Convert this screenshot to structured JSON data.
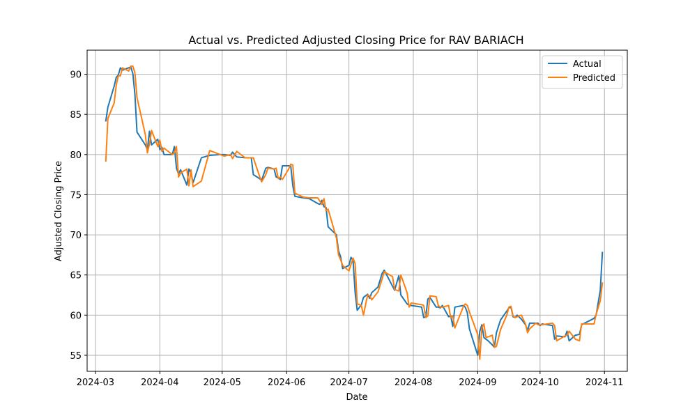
{
  "chart_data": {
    "type": "line",
    "title": "Actual vs. Predicted Adjusted Closing Price for RAV BARIACH",
    "xlabel": "Date",
    "ylabel": "Adjusted Closing Price",
    "x_ticks": [
      "2024-03",
      "2024-04",
      "2024-05",
      "2024-06",
      "2024-07",
      "2024-08",
      "2024-09",
      "2024-10",
      "2024-11"
    ],
    "y_ticks": [
      55,
      60,
      65,
      70,
      75,
      80,
      85,
      90
    ],
    "xlim": [
      "2024-02-26",
      "2024-11-12"
    ],
    "ylim": [
      53,
      93
    ],
    "grid": true,
    "legend_position": "top-right",
    "colors": {
      "actual": "#1f77b4",
      "predicted": "#ff7f0e"
    },
    "series": [
      {
        "name": "Actual",
        "points": [
          [
            "2024-03-06",
            84.2
          ],
          [
            "2024-03-07",
            85.9
          ],
          [
            "2024-03-10",
            88.5
          ],
          [
            "2024-03-11",
            89.6
          ],
          [
            "2024-03-12",
            89.9
          ],
          [
            "2024-03-13",
            90.8
          ],
          [
            "2024-03-14",
            90.5
          ],
          [
            "2024-03-17",
            90.8
          ],
          [
            "2024-03-18",
            90.9
          ],
          [
            "2024-03-19",
            90.1
          ],
          [
            "2024-03-20",
            87.5
          ],
          [
            "2024-03-21",
            82.8
          ],
          [
            "2024-03-25",
            81.2
          ],
          [
            "2024-03-26",
            80.6
          ],
          [
            "2024-03-27",
            82.9
          ],
          [
            "2024-03-28",
            81.2
          ],
          [
            "2024-03-31",
            81.9
          ],
          [
            "2024-04-01",
            80.6
          ],
          [
            "2024-04-02",
            80.9
          ],
          [
            "2024-04-03",
            80.0
          ],
          [
            "2024-04-07",
            80.0
          ],
          [
            "2024-04-08",
            81.0
          ],
          [
            "2024-04-09",
            78.3
          ],
          [
            "2024-04-10",
            77.6
          ],
          [
            "2024-04-11",
            78.1
          ],
          [
            "2024-04-14",
            76.2
          ],
          [
            "2024-04-15",
            78.2
          ],
          [
            "2024-04-16",
            77.7
          ],
          [
            "2024-04-17",
            76.5
          ],
          [
            "2024-04-21",
            79.6
          ],
          [
            "2024-04-25",
            79.9
          ],
          [
            "2024-04-30",
            80.0
          ],
          [
            "2024-05-02",
            80.0
          ],
          [
            "2024-05-05",
            79.9
          ],
          [
            "2024-05-06",
            80.3
          ],
          [
            "2024-05-08",
            79.7
          ],
          [
            "2024-05-12",
            79.6
          ],
          [
            "2024-05-15",
            79.6
          ],
          [
            "2024-05-16",
            77.5
          ],
          [
            "2024-05-19",
            77.0
          ],
          [
            "2024-05-20",
            76.8
          ],
          [
            "2024-05-22",
            78.3
          ],
          [
            "2024-05-23",
            78.4
          ],
          [
            "2024-05-26",
            78.2
          ],
          [
            "2024-05-27",
            77.2
          ],
          [
            "2024-05-28",
            77.1
          ],
          [
            "2024-05-29",
            76.9
          ],
          [
            "2024-05-30",
            78.6
          ],
          [
            "2024-06-02",
            78.6
          ],
          [
            "2024-06-03",
            78.6
          ],
          [
            "2024-06-04",
            76.1
          ],
          [
            "2024-06-05",
            74.8
          ],
          [
            "2024-06-09",
            74.6
          ],
          [
            "2024-06-12",
            74.5
          ],
          [
            "2024-06-16",
            73.9
          ],
          [
            "2024-06-17",
            73.8
          ],
          [
            "2024-06-18",
            74.3
          ],
          [
            "2024-06-19",
            73.5
          ],
          [
            "2024-06-20",
            73.4
          ],
          [
            "2024-06-21",
            71.0
          ],
          [
            "2024-06-25",
            70.0
          ],
          [
            "2024-06-26",
            68.0
          ],
          [
            "2024-06-27",
            67.3
          ],
          [
            "2024-06-28",
            65.8
          ],
          [
            "2024-07-01",
            66.2
          ],
          [
            "2024-07-02",
            67.2
          ],
          [
            "2024-07-03",
            66.8
          ],
          [
            "2024-07-04",
            62.8
          ],
          [
            "2024-07-05",
            60.6
          ],
          [
            "2024-07-07",
            61.3
          ],
          [
            "2024-07-08",
            62.2
          ],
          [
            "2024-07-10",
            62.6
          ],
          [
            "2024-07-11",
            62.1
          ],
          [
            "2024-07-12",
            62.8
          ],
          [
            "2024-07-15",
            63.5
          ],
          [
            "2024-07-17",
            65.2
          ],
          [
            "2024-07-18",
            65.6
          ],
          [
            "2024-07-22",
            63.6
          ],
          [
            "2024-07-23",
            63.1
          ],
          [
            "2024-07-25",
            64.9
          ],
          [
            "2024-07-26",
            62.5
          ],
          [
            "2024-07-29",
            61.4
          ],
          [
            "2024-07-30",
            61.2
          ],
          [
            "2024-07-31",
            61.2
          ],
          [
            "2024-08-05",
            61.0
          ],
          [
            "2024-08-06",
            59.7
          ],
          [
            "2024-08-07",
            59.8
          ],
          [
            "2024-08-08",
            62.0
          ],
          [
            "2024-08-09",
            62.2
          ],
          [
            "2024-08-12",
            61.0
          ],
          [
            "2024-08-13",
            61.0
          ],
          [
            "2024-08-14",
            60.9
          ],
          [
            "2024-08-15",
            61.2
          ],
          [
            "2024-08-18",
            59.8
          ],
          [
            "2024-08-19",
            59.9
          ],
          [
            "2024-08-20",
            58.6
          ],
          [
            "2024-08-21",
            61.0
          ],
          [
            "2024-08-25",
            61.2
          ],
          [
            "2024-08-26",
            61.0
          ],
          [
            "2024-08-27",
            60.3
          ],
          [
            "2024-08-28",
            58.3
          ],
          [
            "2024-09-01",
            55.0
          ],
          [
            "2024-09-02",
            58.0
          ],
          [
            "2024-09-03",
            58.8
          ],
          [
            "2024-09-04",
            57.2
          ],
          [
            "2024-09-05",
            57.0
          ],
          [
            "2024-09-06",
            56.8
          ],
          [
            "2024-09-08",
            56.3
          ],
          [
            "2024-09-09",
            56.0
          ],
          [
            "2024-09-10",
            57.8
          ],
          [
            "2024-09-12",
            59.4
          ],
          [
            "2024-09-15",
            60.5
          ],
          [
            "2024-09-16",
            60.9
          ],
          [
            "2024-09-17",
            61.0
          ],
          [
            "2024-09-18",
            59.8
          ],
          [
            "2024-09-19",
            59.7
          ],
          [
            "2024-09-20",
            60.0
          ],
          [
            "2024-09-22",
            59.5
          ],
          [
            "2024-09-24",
            58.8
          ],
          [
            "2024-09-25",
            58.1
          ],
          [
            "2024-09-26",
            59.0
          ],
          [
            "2024-09-29",
            59.0
          ],
          [
            "2024-09-30",
            59.0
          ],
          [
            "2024-10-01",
            58.7
          ],
          [
            "2024-10-02",
            58.9
          ],
          [
            "2024-10-07",
            58.7
          ],
          [
            "2024-10-08",
            57.0
          ],
          [
            "2024-10-09",
            57.4
          ],
          [
            "2024-10-13",
            57.3
          ],
          [
            "2024-10-14",
            58.0
          ],
          [
            "2024-10-15",
            56.8
          ],
          [
            "2024-10-18",
            57.5
          ],
          [
            "2024-10-20",
            57.6
          ],
          [
            "2024-10-21",
            58.8
          ],
          [
            "2024-10-27",
            59.6
          ],
          [
            "2024-10-28",
            60.0
          ],
          [
            "2024-10-30",
            63.1
          ],
          [
            "2024-10-31",
            67.8
          ]
        ]
      },
      {
        "name": "Predicted",
        "points": [
          [
            "2024-03-06",
            79.2
          ],
          [
            "2024-03-07",
            84.5
          ],
          [
            "2024-03-10",
            86.4
          ],
          [
            "2024-03-11",
            88.6
          ],
          [
            "2024-03-12",
            89.8
          ],
          [
            "2024-03-13",
            89.8
          ],
          [
            "2024-03-14",
            90.8
          ],
          [
            "2024-03-17",
            90.4
          ],
          [
            "2024-03-18",
            91.0
          ],
          [
            "2024-03-19",
            91.0
          ],
          [
            "2024-03-20",
            90.2
          ],
          [
            "2024-03-21",
            87.1
          ],
          [
            "2024-03-25",
            82.5
          ],
          [
            "2024-03-26",
            80.2
          ],
          [
            "2024-03-27",
            81.3
          ],
          [
            "2024-03-28",
            83.0
          ],
          [
            "2024-03-31",
            81.0
          ],
          [
            "2024-04-01",
            81.8
          ],
          [
            "2024-04-02",
            80.4
          ],
          [
            "2024-04-03",
            80.8
          ],
          [
            "2024-04-07",
            80.0
          ],
          [
            "2024-04-08",
            80.2
          ],
          [
            "2024-04-09",
            81.0
          ],
          [
            "2024-04-10",
            77.2
          ],
          [
            "2024-04-11",
            77.7
          ],
          [
            "2024-04-14",
            78.2
          ],
          [
            "2024-04-15",
            76.1
          ],
          [
            "2024-04-16",
            78.1
          ],
          [
            "2024-04-17",
            76.0
          ],
          [
            "2024-04-21",
            76.7
          ],
          [
            "2024-04-25",
            80.5
          ],
          [
            "2024-04-30",
            80.0
          ],
          [
            "2024-05-02",
            79.8
          ],
          [
            "2024-05-05",
            80.0
          ],
          [
            "2024-05-06",
            79.5
          ],
          [
            "2024-05-08",
            80.4
          ],
          [
            "2024-05-12",
            79.6
          ],
          [
            "2024-05-15",
            79.6
          ],
          [
            "2024-05-16",
            79.6
          ],
          [
            "2024-05-19",
            77.3
          ],
          [
            "2024-05-20",
            76.6
          ],
          [
            "2024-05-22",
            77.5
          ],
          [
            "2024-05-23",
            78.3
          ],
          [
            "2024-05-26",
            78.2
          ],
          [
            "2024-05-27",
            78.3
          ],
          [
            "2024-05-28",
            77.0
          ],
          [
            "2024-05-29",
            77.2
          ],
          [
            "2024-05-30",
            76.9
          ],
          [
            "2024-06-02",
            78.2
          ],
          [
            "2024-06-03",
            78.8
          ],
          [
            "2024-06-04",
            78.7
          ],
          [
            "2024-06-05",
            75.2
          ],
          [
            "2024-06-09",
            74.7
          ],
          [
            "2024-06-12",
            74.6
          ],
          [
            "2024-06-16",
            74.6
          ],
          [
            "2024-06-17",
            74.2
          ],
          [
            "2024-06-18",
            73.8
          ],
          [
            "2024-06-19",
            74.5
          ],
          [
            "2024-06-20",
            73.0
          ],
          [
            "2024-06-21",
            73.2
          ],
          [
            "2024-06-25",
            69.6
          ],
          [
            "2024-06-26",
            67.5
          ],
          [
            "2024-06-27",
            66.9
          ],
          [
            "2024-06-28",
            66.2
          ],
          [
            "2024-07-01",
            65.5
          ],
          [
            "2024-07-02",
            66.3
          ],
          [
            "2024-07-03",
            67.1
          ],
          [
            "2024-07-04",
            66.4
          ],
          [
            "2024-07-05",
            61.4
          ],
          [
            "2024-07-07",
            61.2
          ],
          [
            "2024-07-08",
            60.0
          ],
          [
            "2024-07-10",
            62.5
          ],
          [
            "2024-07-11",
            62.4
          ],
          [
            "2024-07-12",
            61.9
          ],
          [
            "2024-07-15",
            62.9
          ],
          [
            "2024-07-17",
            64.5
          ],
          [
            "2024-07-18",
            65.4
          ],
          [
            "2024-07-22",
            64.8
          ],
          [
            "2024-07-23",
            63.2
          ],
          [
            "2024-07-25",
            63.0
          ],
          [
            "2024-07-26",
            65.0
          ],
          [
            "2024-07-29",
            62.8
          ],
          [
            "2024-07-30",
            61.0
          ],
          [
            "2024-07-31",
            61.5
          ],
          [
            "2024-08-05",
            61.3
          ],
          [
            "2024-08-06",
            61.2
          ],
          [
            "2024-08-07",
            59.7
          ],
          [
            "2024-08-08",
            59.9
          ],
          [
            "2024-08-09",
            62.4
          ],
          [
            "2024-08-12",
            62.3
          ],
          [
            "2024-08-13",
            61.2
          ],
          [
            "2024-08-14",
            61.0
          ],
          [
            "2024-08-15",
            61.0
          ],
          [
            "2024-08-18",
            61.2
          ],
          [
            "2024-08-19",
            59.7
          ],
          [
            "2024-08-20",
            59.9
          ],
          [
            "2024-08-21",
            58.4
          ],
          [
            "2024-08-25",
            61.0
          ],
          [
            "2024-08-26",
            61.4
          ],
          [
            "2024-08-27",
            61.2
          ],
          [
            "2024-08-28",
            60.4
          ],
          [
            "2024-09-01",
            57.6
          ],
          [
            "2024-09-02",
            54.5
          ],
          [
            "2024-09-03",
            58.4
          ],
          [
            "2024-09-04",
            58.9
          ],
          [
            "2024-09-05",
            57.2
          ],
          [
            "2024-09-06",
            57.3
          ],
          [
            "2024-09-08",
            57.5
          ],
          [
            "2024-09-09",
            56.0
          ],
          [
            "2024-09-10",
            56.1
          ],
          [
            "2024-09-12",
            58.2
          ],
          [
            "2024-09-15",
            60.0
          ],
          [
            "2024-09-16",
            61.0
          ],
          [
            "2024-09-17",
            61.1
          ],
          [
            "2024-09-18",
            59.9
          ],
          [
            "2024-09-19",
            59.7
          ],
          [
            "2024-09-20",
            59.8
          ],
          [
            "2024-09-22",
            60.0
          ],
          [
            "2024-09-24",
            58.9
          ],
          [
            "2024-09-25",
            57.8
          ],
          [
            "2024-09-26",
            58.3
          ],
          [
            "2024-09-29",
            59.0
          ],
          [
            "2024-09-30",
            58.8
          ],
          [
            "2024-10-01",
            58.8
          ],
          [
            "2024-10-02",
            58.8
          ],
          [
            "2024-10-07",
            59.0
          ],
          [
            "2024-10-08",
            58.7
          ],
          [
            "2024-10-09",
            56.8
          ],
          [
            "2024-10-13",
            57.4
          ],
          [
            "2024-10-14",
            57.5
          ],
          [
            "2024-10-15",
            58.0
          ],
          [
            "2024-10-18",
            57.0
          ],
          [
            "2024-10-20",
            56.8
          ],
          [
            "2024-10-21",
            58.9
          ],
          [
            "2024-10-27",
            58.9
          ],
          [
            "2024-10-28",
            60.1
          ],
          [
            "2024-10-30",
            61.8
          ],
          [
            "2024-10-31",
            64.0
          ]
        ]
      }
    ]
  }
}
